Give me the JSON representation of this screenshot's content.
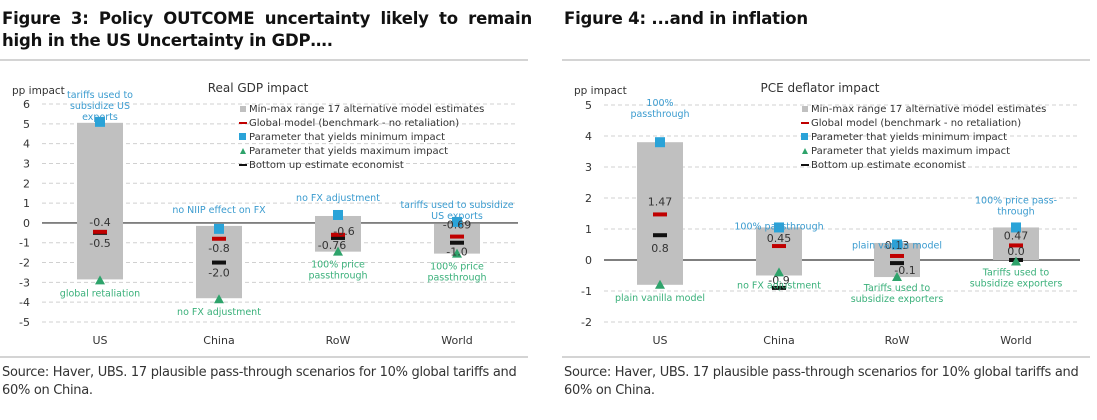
{
  "colors": {
    "range_bar": "#c0c0c0",
    "global_model": "#c00000",
    "min_param": "#2aa3d8",
    "max_param": "#2ea36b",
    "bottom_up": "#111111",
    "annot_min": "#3a9bcf",
    "annot_max": "#3ab07a",
    "grid": "#d0d0d0",
    "zero_line": "#555555"
  },
  "figures": [
    {
      "title": "Figure 3: Policy OUTCOME uncertainty likely to remain high in the US Uncertainty in GDP….",
      "source": "Source: Haver, UBS. 17 plausible pass-through scenarios for 10% global tariffs and 60% on China."
    },
    {
      "title": "Figure 4: ...and in inflation",
      "source": "Source: Haver, UBS. 17 plausible pass-through scenarios for 10% global tariffs and 60% on China."
    }
  ],
  "legend": [
    {
      "key": "range",
      "label": "Min-max range 17 alternative model estimates"
    },
    {
      "key": "global",
      "label": "Global model (benchmark - no retaliation)"
    },
    {
      "key": "min",
      "label": "Parameter that yields minimum impact"
    },
    {
      "key": "max",
      "label": "Parameter that yields maximum impact"
    },
    {
      "key": "bottom",
      "label": "Bottom up estimate economist"
    }
  ],
  "chart_data": [
    {
      "type": "bar",
      "title": "Real GDP impact",
      "ylabel": "pp impact",
      "xlabel": "",
      "ylim": [
        -5,
        6
      ],
      "yticks": [
        6,
        5,
        4,
        3,
        2,
        1,
        0,
        -1,
        -2,
        -3,
        -4,
        -5
      ],
      "grid": true,
      "legend_position": "top-right",
      "categories": [
        "US",
        "China",
        "RoW",
        "World"
      ],
      "series": [
        {
          "name": "Min-max range 17 alternative model estimates",
          "kind": "floating-bar",
          "values": [
            [
              -2.85,
              5.05
            ],
            [
              -3.8,
              -0.15
            ],
            [
              -1.45,
              0.35
            ],
            [
              -1.55,
              -0.05
            ]
          ]
        },
        {
          "name": "Global model (benchmark - no retaliation)",
          "kind": "dash",
          "values": [
            -0.45,
            -0.8,
            -0.6,
            -0.69
          ],
          "labels": [
            "-0.4",
            "-0.8",
            "-0.6",
            "-0.69"
          ]
        },
        {
          "name": "Parameter that yields minimum impact",
          "kind": "square",
          "values": [
            5.1,
            -0.3,
            0.4,
            0.05
          ]
        },
        {
          "name": "Parameter that yields maximum impact",
          "kind": "triangle",
          "values": [
            -2.9,
            -3.85,
            -1.45,
            -1.55
          ]
        },
        {
          "name": "Bottom up estimate economist",
          "kind": "dash",
          "values": [
            -0.5,
            -2.0,
            -0.76,
            -1.0
          ],
          "labels": [
            "-0.5",
            "-2.0",
            "-0.76",
            "-1.0"
          ]
        }
      ],
      "annotations": {
        "min": [
          {
            "lines": [
              "tariffs used to",
              "subsidize US",
              "exports"
            ]
          },
          {
            "lines": [
              "no NIIP effect on FX"
            ]
          },
          {
            "lines": [
              "no FX adjustment"
            ]
          },
          {
            "lines": [
              "tariffs used to subsidize",
              "US exports"
            ]
          }
        ],
        "max": [
          {
            "lines": [
              "global retaliation"
            ]
          },
          {
            "lines": [
              "no FX adjustment"
            ]
          },
          {
            "lines": [
              "100% price",
              "passthrough"
            ]
          },
          {
            "lines": [
              "100% price",
              "passthrough"
            ]
          }
        ]
      }
    },
    {
      "type": "bar",
      "title": "PCE deflator impact",
      "ylabel": "pp impact",
      "xlabel": "",
      "ylim": [
        -2,
        5
      ],
      "yticks": [
        5,
        4,
        3,
        2,
        1,
        0,
        -1,
        -2
      ],
      "grid": true,
      "legend_position": "top-right",
      "categories": [
        "US",
        "China",
        "RoW",
        "World"
      ],
      "series": [
        {
          "name": "Min-max range 17 alternative model estimates",
          "kind": "floating-bar",
          "values": [
            [
              -0.8,
              3.8
            ],
            [
              -0.5,
              1.05
            ],
            [
              -0.55,
              0.55
            ],
            [
              0.0,
              1.05
            ]
          ]
        },
        {
          "name": "Global model (benchmark - no retaliation)",
          "kind": "dash",
          "values": [
            1.47,
            0.45,
            0.13,
            0.47
          ],
          "labels": [
            "1.47",
            "0.45",
            "0.13",
            "0.47"
          ]
        },
        {
          "name": "Parameter that yields minimum impact",
          "kind": "square",
          "values": [
            3.8,
            1.05,
            0.5,
            1.05
          ]
        },
        {
          "name": "Parameter that yields maximum impact",
          "kind": "triangle",
          "values": [
            -0.8,
            -0.4,
            -0.55,
            -0.05
          ]
        },
        {
          "name": "Bottom up estimate economist",
          "kind": "dash",
          "values": [
            0.8,
            -0.9,
            -0.1,
            0.0
          ],
          "labels": [
            "0.8",
            "-0.9",
            "-0.1",
            "0.0"
          ]
        }
      ],
      "annotations": {
        "min": [
          {
            "lines": [
              "100%",
              "passthrough"
            ]
          },
          {
            "lines": [
              "100% passthrough"
            ]
          },
          {
            "lines": [
              "plain vanilla model"
            ]
          },
          {
            "lines": [
              "100% price pass-",
              "through"
            ]
          }
        ],
        "max": [
          {
            "lines": [
              "plain vanilla model"
            ]
          },
          {
            "lines": [
              "no FX adjustment"
            ]
          },
          {
            "lines": [
              "Tariffs used to",
              "subsidize exporters"
            ]
          },
          {
            "lines": [
              "Tariffs used to",
              "subsidize exporters"
            ]
          }
        ]
      }
    }
  ]
}
